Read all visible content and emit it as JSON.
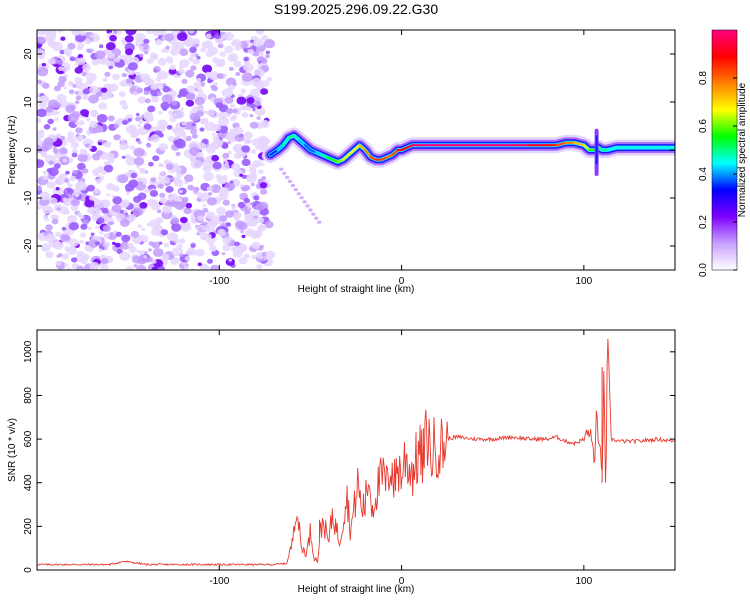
{
  "title": "S199.2025.296.09.22.G30",
  "chart_data": [
    {
      "type": "heatmap",
      "xlabel": "Height of straight line (km)",
      "ylabel": "Frequency (Hz)",
      "xlim": [
        -200,
        150
      ],
      "ylim": [
        -25,
        25
      ],
      "xticks": [
        -100,
        0,
        100
      ],
      "yticks": [
        -20,
        -10,
        0,
        10,
        20
      ],
      "noise_region_x": [
        -200,
        -72
      ],
      "ridge": {
        "x": [
          -72,
          -68,
          -65,
          -62,
          -59,
          -56,
          -53,
          -50,
          -47,
          -44,
          -41,
          -38,
          -35,
          -32,
          -29,
          -26,
          -23,
          -20,
          -17,
          -14,
          -11,
          -8,
          -5,
          -2,
          0,
          3,
          6,
          10,
          14,
          20,
          30,
          40,
          50,
          60,
          70,
          80,
          85,
          90,
          95,
          100,
          103,
          106,
          108,
          110,
          113,
          118,
          125,
          135,
          145,
          150
        ],
        "freq": [
          -1,
          0,
          1,
          2.5,
          3,
          2,
          1,
          0,
          -0.5,
          -1,
          -1.5,
          -2,
          -2.5,
          -2,
          -1,
          0,
          1,
          0,
          -1.5,
          -2,
          -2,
          -1.5,
          -1,
          0,
          0,
          0.5,
          1,
          1,
          1,
          1,
          1,
          1,
          1,
          1,
          1,
          1,
          1,
          1.5,
          1.5,
          1,
          0,
          0,
          0.5,
          0,
          0,
          0.5,
          0.5,
          0.5,
          0.5,
          0.5
        ],
        "amplitude": [
          0.3,
          0.4,
          0.45,
          0.5,
          0.5,
          0.45,
          0.4,
          0.35,
          0.4,
          0.45,
          0.5,
          0.55,
          0.6,
          0.65,
          0.7,
          0.65,
          0.7,
          0.75,
          0.8,
          0.85,
          0.85,
          0.8,
          0.8,
          0.85,
          0.9,
          0.9,
          0.95,
          1.0,
          1.0,
          1.0,
          1.0,
          1.0,
          1.0,
          1.0,
          0.95,
          0.9,
          0.85,
          0.8,
          0.75,
          0.7,
          0.6,
          0.55,
          0.5,
          0.5,
          0.45,
          0.45,
          0.45,
          0.45,
          0.45,
          0.45
        ]
      },
      "colorbar": {
        "label": "Normalized spectral amplitude",
        "range": [
          0,
          1
        ],
        "ticks": [
          "0.0",
          "0.2",
          "0.4",
          "0.6",
          "0.8"
        ],
        "colors": [
          "#ffffff",
          "#c8a0ff",
          "#8000ff",
          "#0000ff",
          "#00ffff",
          "#00ff00",
          "#ffff00",
          "#ff8000",
          "#ff0000",
          "#ff0080"
        ]
      }
    },
    {
      "type": "line",
      "xlabel": "Height of straight line (km)",
      "ylabel": "SNR (10 * v/v)",
      "xlim": [
        -200,
        150
      ],
      "ylim": [
        0,
        1100
      ],
      "xticks": [
        -100,
        0,
        100
      ],
      "yticks": [
        0,
        200,
        400,
        600,
        800,
        1000
      ],
      "color": "#e8392e",
      "series": [
        {
          "name": "SNR",
          "x": [
            -200,
            -180,
            -160,
            -152,
            -140,
            -120,
            -100,
            -80,
            -70,
            -63,
            -60,
            -58,
            -57,
            -55,
            -52,
            -50,
            -48,
            -46,
            -45,
            -43,
            -40,
            -38,
            -36,
            -34,
            -32,
            -30,
            -28,
            -26,
            -24,
            -22,
            -20,
            -18,
            -16,
            -14,
            -12,
            -10,
            -8,
            -6,
            -4,
            -2,
            0,
            2,
            4,
            6,
            8,
            10,
            12,
            14,
            16,
            18,
            20,
            22,
            25,
            30,
            40,
            50,
            60,
            70,
            80,
            85,
            90,
            95,
            100,
            103,
            105,
            106,
            107,
            108,
            109,
            110,
            111,
            112,
            113,
            115,
            120,
            130,
            140,
            150
          ],
          "y": [
            25,
            25,
            25,
            40,
            25,
            25,
            25,
            25,
            25,
            30,
            120,
            310,
            250,
            100,
            80,
            180,
            60,
            40,
            150,
            230,
            120,
            260,
            200,
            130,
            240,
            350,
            180,
            280,
            400,
            280,
            300,
            430,
            280,
            360,
            400,
            430,
            380,
            500,
            400,
            480,
            430,
            520,
            480,
            450,
            500,
            540,
            480,
            650,
            520,
            560,
            580,
            560,
            600,
            610,
            600,
            600,
            610,
            600,
            600,
            610,
            590,
            580,
            600,
            640,
            560,
            500,
            720,
            540,
            620,
            400,
            900,
            330,
            1090,
            600,
            590,
            590,
            600,
            590
          ]
        }
      ]
    }
  ]
}
